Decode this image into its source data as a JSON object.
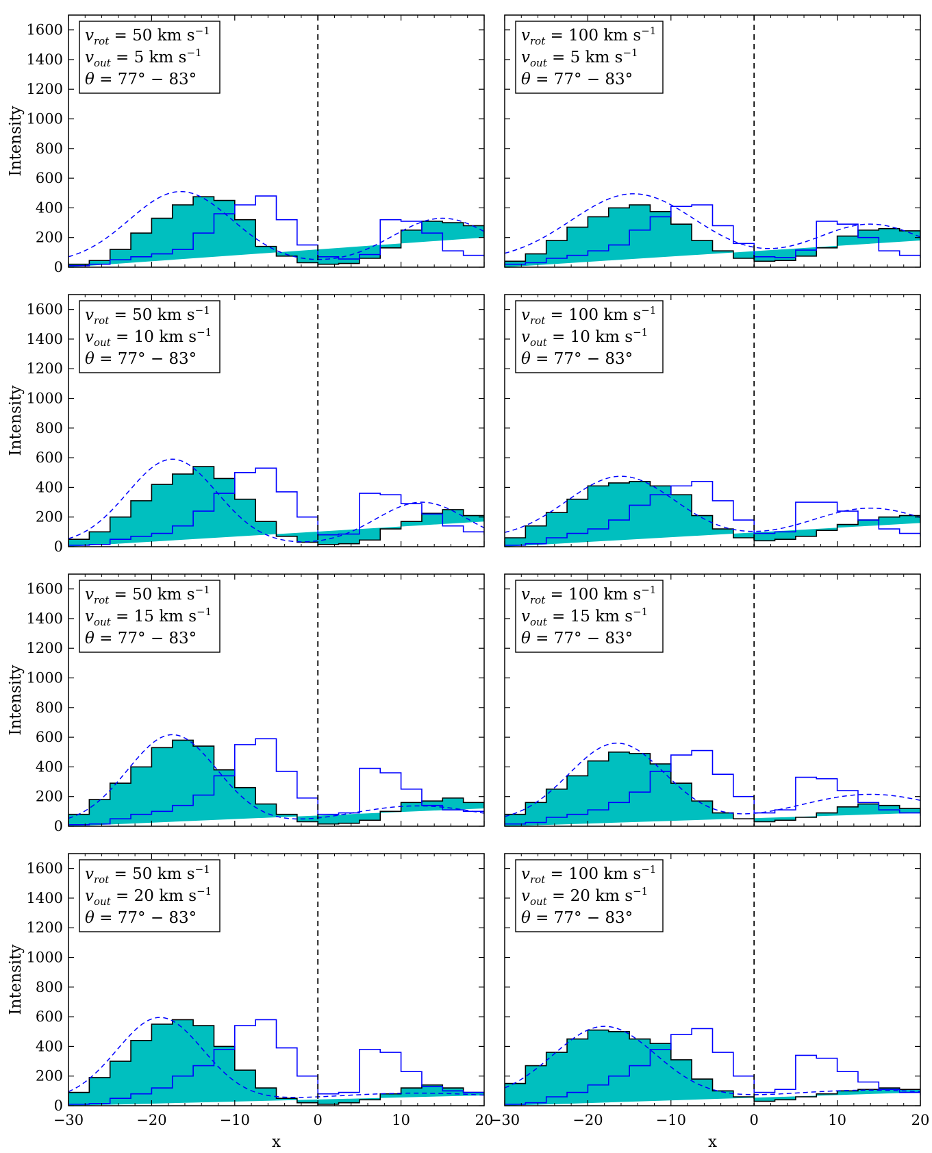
{
  "figure": {
    "ylabel": "Intensity",
    "xlabel": "x",
    "xlim": [
      -30,
      20
    ],
    "ylim": [
      0,
      1700
    ],
    "xticks": [
      -30,
      -20,
      -10,
      0,
      10,
      20
    ],
    "xtick_labels": [
      "−30",
      "−20",
      "−10",
      "0",
      "10",
      "20"
    ],
    "yticks": [
      0,
      200,
      400,
      600,
      800,
      1000,
      1200,
      1400,
      1600
    ],
    "ytick_labels": [
      "0",
      "200",
      "400",
      "600",
      "800",
      "1000",
      "1200",
      "1400",
      "1600"
    ],
    "colors": {
      "fill": "#00bfbf",
      "outline": "#000000",
      "blue": "#0000ff",
      "vline": "#000000"
    }
  },
  "chart_data": [
    {
      "type": "area",
      "vrot": "50",
      "vout": "5",
      "theta": "77° − 83°",
      "x_edges": [
        -30,
        -27.5,
        -25,
        -22.5,
        -20,
        -17.5,
        -15,
        -12.5,
        -10,
        -7.5,
        -5,
        -2.5,
        0,
        2.5,
        5,
        7.5,
        10,
        12.5,
        15,
        17.5,
        20
      ],
      "filled_hist": [
        20,
        45,
        120,
        230,
        330,
        420,
        475,
        450,
        320,
        140,
        75,
        30,
        20,
        25,
        60,
        130,
        250,
        310,
        300,
        280,
        200
      ],
      "blue_hist": [
        10,
        20,
        50,
        70,
        90,
        120,
        230,
        360,
        420,
        480,
        320,
        150,
        70,
        55,
        85,
        320,
        310,
        230,
        110,
        80,
        70
      ],
      "gaussian": {
        "mu1": -16.5,
        "a1": 485,
        "s1": 6.2,
        "mu2": 15,
        "a2": 305,
        "s2": 6,
        "base": 25
      }
    },
    {
      "type": "area",
      "vrot": "100",
      "vout": "5",
      "theta": "77° − 83°",
      "x_edges": [
        -30,
        -27.5,
        -25,
        -22.5,
        -20,
        -17.5,
        -15,
        -12.5,
        -10,
        -7.5,
        -5,
        -2.5,
        0,
        2.5,
        5,
        7.5,
        10,
        12.5,
        15,
        17.5,
        20
      ],
      "filled_hist": [
        40,
        90,
        180,
        270,
        340,
        400,
        420,
        375,
        290,
        180,
        110,
        60,
        40,
        45,
        75,
        130,
        210,
        250,
        260,
        245,
        180
      ],
      "blue_hist": [
        20,
        30,
        60,
        80,
        110,
        150,
        250,
        340,
        410,
        420,
        280,
        160,
        70,
        65,
        115,
        310,
        290,
        200,
        110,
        80,
        60
      ],
      "gaussian": {
        "mu1": -14.5,
        "a1": 455,
        "s1": 7.5,
        "mu2": 14,
        "a2": 250,
        "s2": 6.5,
        "base": 40
      }
    },
    {
      "type": "area",
      "vrot": "50",
      "vout": "10",
      "theta": "77° − 83°",
      "x_edges": [
        -30,
        -27.5,
        -25,
        -22.5,
        -20,
        -17.5,
        -15,
        -12.5,
        -10,
        -7.5,
        -5,
        -2.5,
        0,
        2.5,
        5,
        7.5,
        10,
        12.5,
        15,
        17.5,
        20
      ],
      "filled_hist": [
        50,
        100,
        200,
        310,
        420,
        490,
        540,
        460,
        320,
        170,
        70,
        30,
        15,
        20,
        45,
        120,
        170,
        225,
        250,
        210,
        170
      ],
      "blue_hist": [
        10,
        15,
        50,
        70,
        90,
        140,
        240,
        360,
        500,
        530,
        370,
        200,
        80,
        85,
        360,
        350,
        290,
        220,
        140,
        100,
        80
      ],
      "gaussian": {
        "mu1": -17.5,
        "a1": 575,
        "s1": 5.4,
        "mu2": 12.5,
        "a2": 285,
        "s2": 5.5,
        "base": 15
      }
    },
    {
      "type": "area",
      "vrot": "100",
      "vout": "10",
      "theta": "77° − 83°",
      "x_edges": [
        -30,
        -27.5,
        -25,
        -22.5,
        -20,
        -17.5,
        -15,
        -12.5,
        -10,
        -7.5,
        -5,
        -2.5,
        0,
        2.5,
        5,
        7.5,
        10,
        12.5,
        15,
        17.5,
        20
      ],
      "filled_hist": [
        60,
        140,
        230,
        320,
        410,
        430,
        440,
        410,
        350,
        210,
        120,
        60,
        40,
        50,
        70,
        110,
        150,
        180,
        200,
        210,
        160
      ],
      "blue_hist": [
        10,
        20,
        60,
        90,
        120,
        180,
        280,
        350,
        410,
        440,
        310,
        180,
        90,
        100,
        300,
        300,
        240,
        180,
        120,
        90,
        70
      ],
      "gaussian": {
        "mu1": -16,
        "a1": 420,
        "s1": 6.5,
        "mu2": 14,
        "a2": 205,
        "s2": 7,
        "base": 55
      }
    },
    {
      "type": "area",
      "vrot": "50",
      "vout": "15",
      "theta": "77° − 83°",
      "x_edges": [
        -30,
        -27.5,
        -25,
        -22.5,
        -20,
        -17.5,
        -15,
        -12.5,
        -10,
        -7.5,
        -5,
        -2.5,
        0,
        2.5,
        5,
        7.5,
        10,
        12.5,
        15,
        17.5,
        20
      ],
      "filled_hist": [
        80,
        180,
        290,
        400,
        530,
        580,
        540,
        380,
        260,
        150,
        80,
        30,
        15,
        20,
        40,
        100,
        160,
        170,
        190,
        160,
        120
      ],
      "blue_hist": [
        10,
        15,
        50,
        80,
        100,
        140,
        210,
        340,
        550,
        590,
        370,
        190,
        80,
        90,
        390,
        360,
        250,
        140,
        110,
        100,
        90
      ],
      "gaussian": {
        "mu1": -17.5,
        "a1": 605,
        "s1": 5.4,
        "mu2": 12,
        "a2": 125,
        "s2": 8,
        "base": 12
      }
    },
    {
      "type": "area",
      "vrot": "100",
      "vout": "15",
      "theta": "77° − 83°",
      "x_edges": [
        -30,
        -27.5,
        -25,
        -22.5,
        -20,
        -17.5,
        -15,
        -12.5,
        -10,
        -7.5,
        -5,
        -2.5,
        0,
        2.5,
        5,
        7.5,
        10,
        12.5,
        15,
        17.5,
        20
      ],
      "filled_hist": [
        80,
        160,
        250,
        340,
        440,
        500,
        490,
        420,
        290,
        170,
        90,
        50,
        30,
        40,
        60,
        90,
        130,
        150,
        140,
        120,
        90
      ],
      "blue_hist": [
        15,
        25,
        60,
        80,
        110,
        160,
        230,
        370,
        480,
        510,
        350,
        200,
        90,
        110,
        330,
        320,
        240,
        160,
        110,
        90,
        70
      ],
      "gaussian": {
        "mu1": -16.5,
        "a1": 530,
        "s1": 5.8,
        "mu2": 14,
        "a2": 185,
        "s2": 8.5,
        "base": 30
      }
    },
    {
      "type": "area",
      "vrot": "50",
      "vout": "20",
      "theta": "77° − 83°",
      "x_edges": [
        -30,
        -27.5,
        -25,
        -22.5,
        -20,
        -17.5,
        -15,
        -12.5,
        -10,
        -7.5,
        -5,
        -2.5,
        0,
        2.5,
        5,
        7.5,
        10,
        12.5,
        15,
        17.5,
        20
      ],
      "filled_hist": [
        90,
        190,
        300,
        440,
        550,
        580,
        540,
        400,
        240,
        120,
        50,
        20,
        10,
        20,
        40,
        80,
        120,
        140,
        120,
        90,
        70
      ],
      "blue_hist": [
        10,
        15,
        50,
        80,
        120,
        200,
        270,
        380,
        540,
        580,
        390,
        200,
        80,
        90,
        380,
        360,
        230,
        130,
        100,
        90,
        80
      ],
      "gaussian": {
        "mu1": -19,
        "a1": 560,
        "s1": 5.2,
        "mu2": 12,
        "a2": 50,
        "s2": 10,
        "base": 35
      }
    },
    {
      "type": "area",
      "vrot": "100",
      "vout": "20",
      "theta": "77° − 83°",
      "x_edges": [
        -30,
        -27.5,
        -25,
        -22.5,
        -20,
        -17.5,
        -15,
        -12.5,
        -10,
        -7.5,
        -5,
        -2.5,
        0,
        2.5,
        5,
        7.5,
        10,
        12.5,
        15,
        17.5,
        20
      ],
      "filled_hist": [
        150,
        270,
        360,
        450,
        510,
        500,
        450,
        420,
        310,
        180,
        100,
        60,
        30,
        40,
        60,
        80,
        100,
        110,
        120,
        110,
        90
      ],
      "blue_hist": [
        10,
        20,
        60,
        90,
        140,
        200,
        270,
        380,
        480,
        520,
        360,
        200,
        90,
        110,
        340,
        320,
        230,
        160,
        110,
        90,
        70
      ],
      "gaussian": {
        "mu1": -18,
        "a1": 490,
        "s1": 6.2,
        "mu2": 14,
        "a2": 60,
        "s2": 10,
        "base": 45
      }
    }
  ]
}
